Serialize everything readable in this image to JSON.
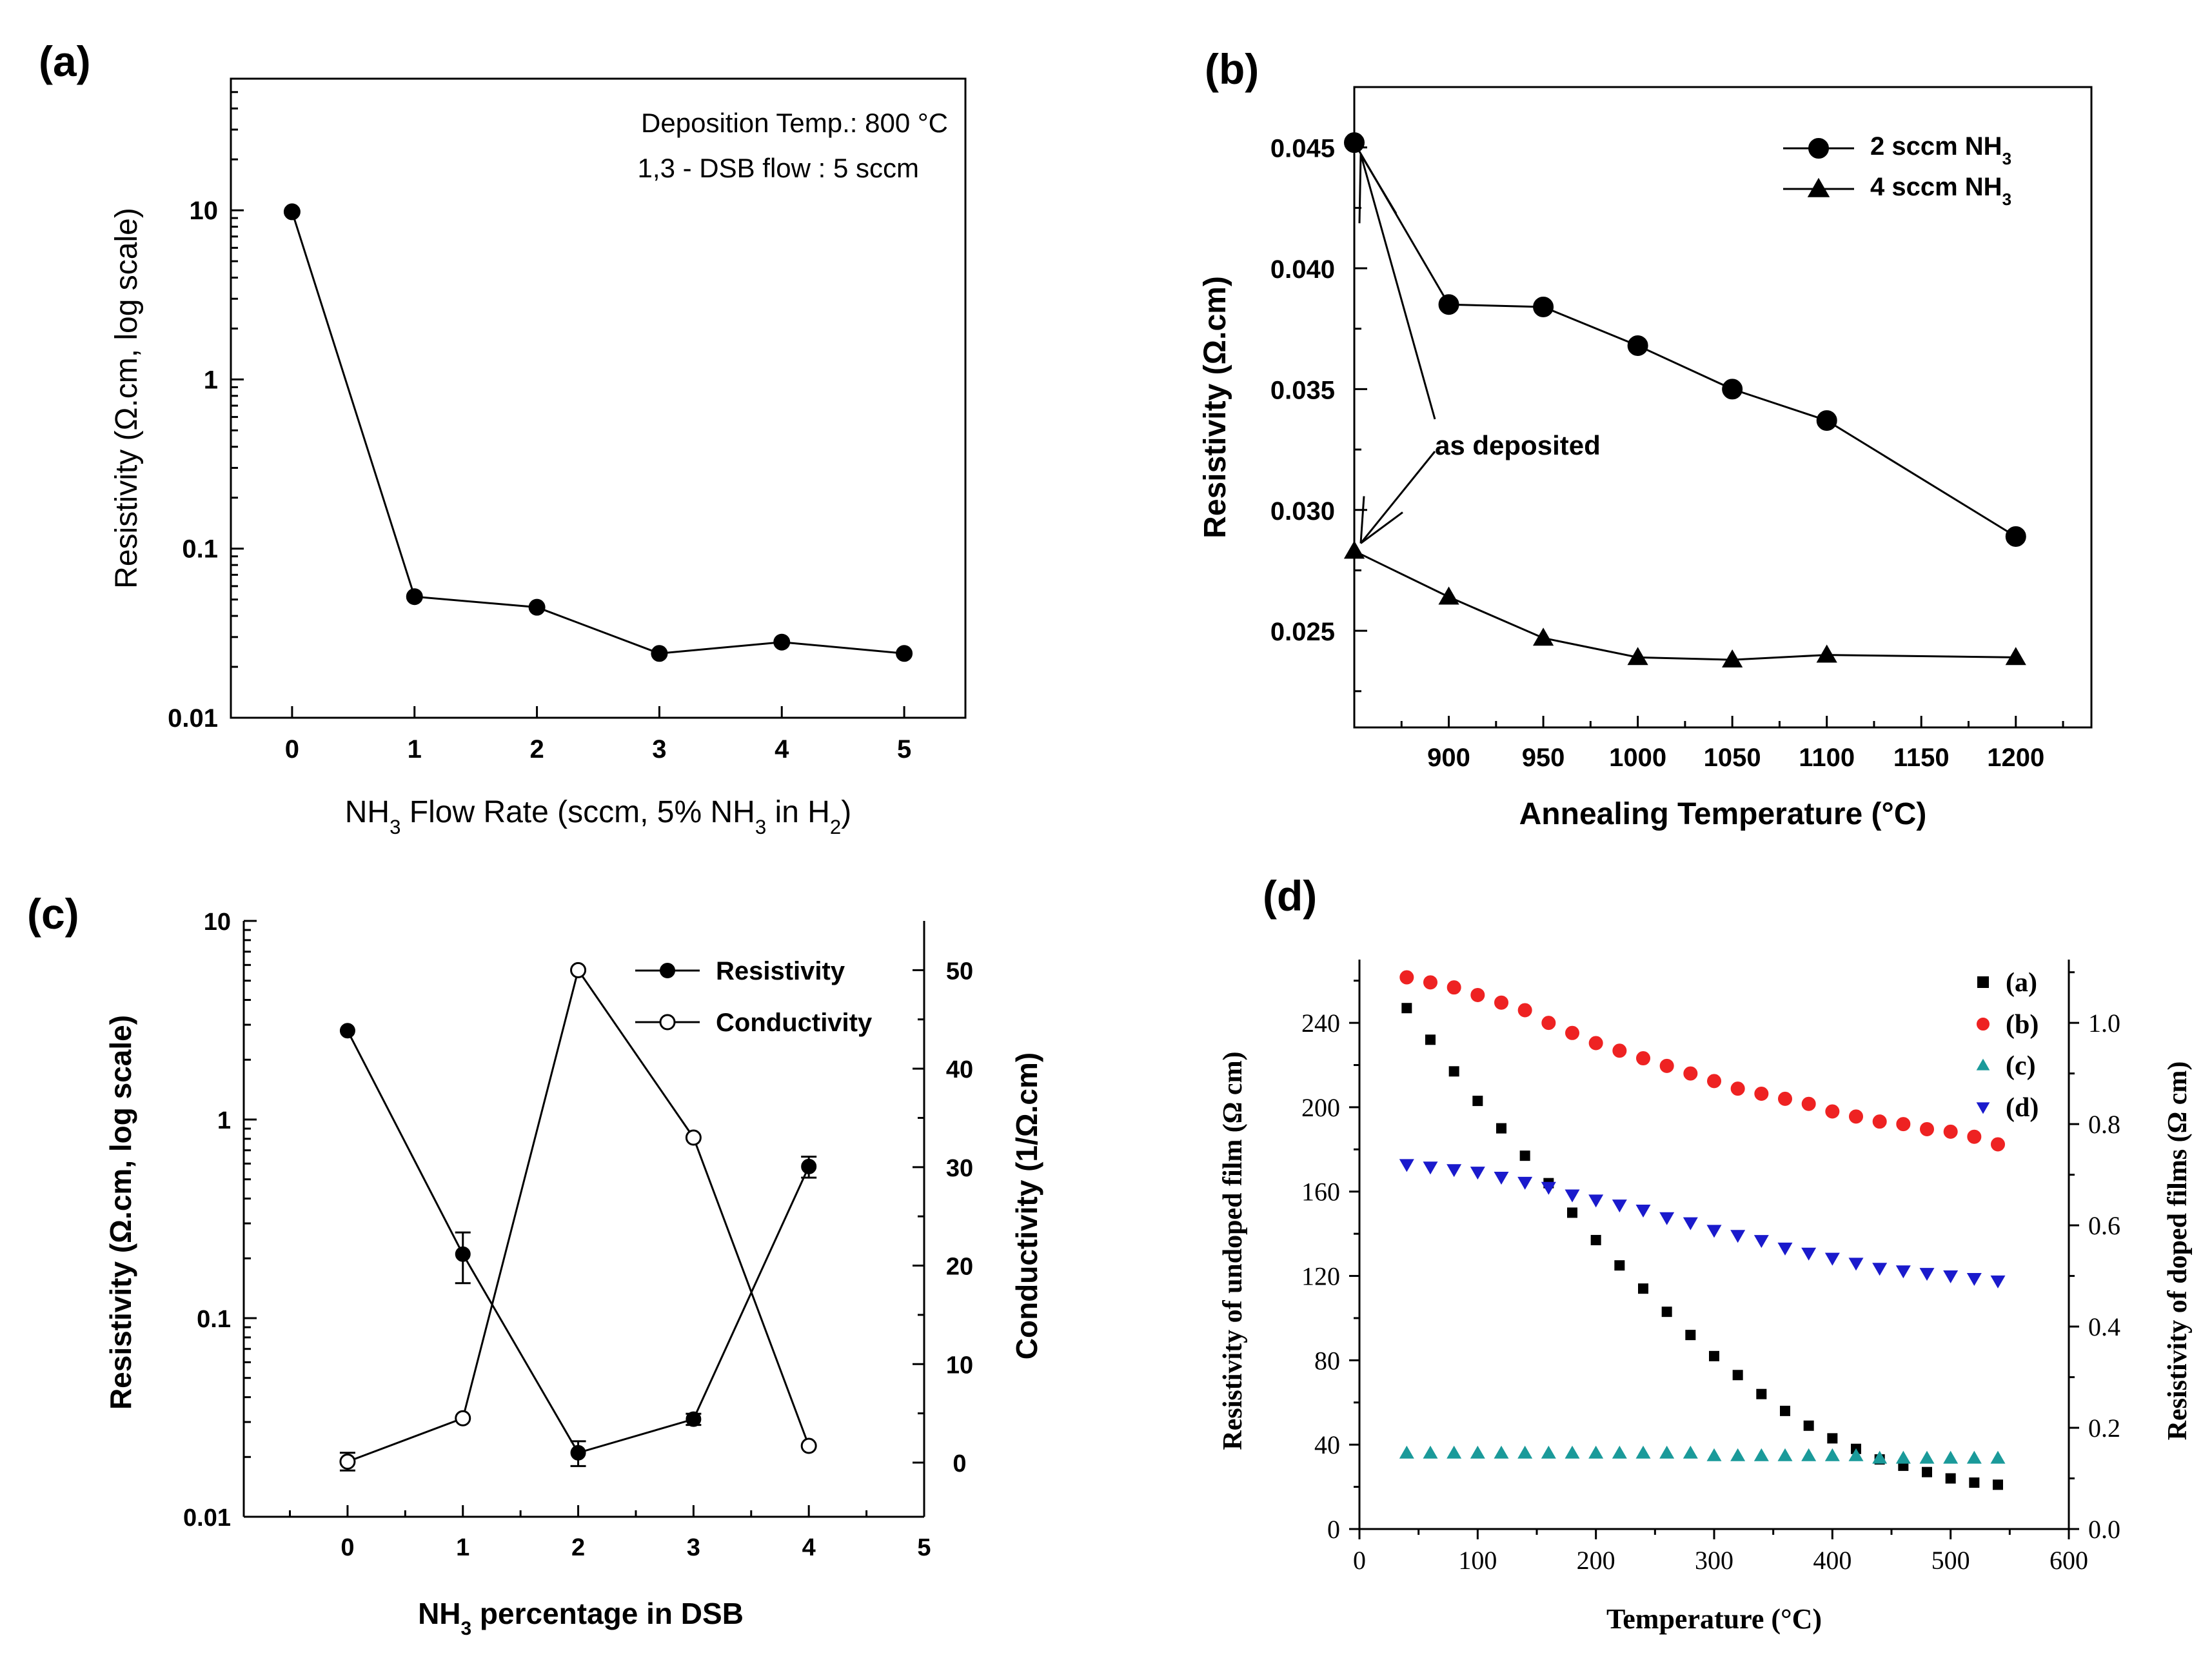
{
  "figure": {
    "panels": [
      "(a)",
      "(b)",
      "(c)",
      "(d)"
    ]
  },
  "chart_data": [
    {
      "id": "a",
      "type": "line",
      "panel_label": "(a)",
      "title": "",
      "xlabel": "NH₃ Flow Rate (sccm, 5% NH₃ in H₂)",
      "ylabel": "Resistivity (Ω.cm, log scale)",
      "yscale": "log",
      "xlim": [
        -0.5,
        5.5
      ],
      "ylim": [
        0.01,
        60
      ],
      "x_ticks": [
        0,
        1,
        2,
        3,
        4,
        5
      ],
      "y_ticks": [
        0.01,
        0.1,
        1,
        10
      ],
      "y_tick_labels": [
        "0.01",
        "0.1",
        "1",
        "10"
      ],
      "annotations": [
        "Deposition Temp.:  800 °C",
        "1,3 - DSB flow : 5 sccm"
      ],
      "series": [
        {
          "name": "Resistivity",
          "marker": "filled-circle",
          "color": "#000000",
          "x": [
            0,
            1,
            2,
            3,
            4,
            5
          ],
          "values": [
            9.8,
            0.052,
            0.045,
            0.024,
            0.028,
            0.024
          ]
        }
      ]
    },
    {
      "id": "b",
      "type": "line",
      "panel_label": "(b)",
      "title": "",
      "xlabel": "Annealing Temperature (°C)",
      "ylabel": "Resistivity (Ω.cm)",
      "xlim": [
        850,
        1240
      ],
      "ylim": [
        0.021,
        0.0475
      ],
      "x_ticks": [
        900,
        950,
        1000,
        1050,
        1100,
        1150,
        1200
      ],
      "y_ticks": [
        0.025,
        0.03,
        0.035,
        0.04,
        0.045
      ],
      "y_tick_labels": [
        "0.025",
        "0.030",
        "0.035",
        "0.040",
        "0.045"
      ],
      "annotations": [
        "as deposited"
      ],
      "legend_position": "top-right",
      "series": [
        {
          "name": "2 sccm NH₃",
          "marker": "filled-circle",
          "color": "#000000",
          "x": [
            850,
            900,
            950,
            1000,
            1050,
            1100,
            1200
          ],
          "values": [
            0.0452,
            0.0385,
            0.0384,
            0.0368,
            0.035,
            0.0337,
            0.0289
          ]
        },
        {
          "name": "4 sccm NH₃",
          "marker": "filled-triangle",
          "color": "#000000",
          "x": [
            850,
            900,
            950,
            1000,
            1050,
            1100,
            1200
          ],
          "values": [
            0.0283,
            0.0264,
            0.0247,
            0.0239,
            0.0238,
            0.024,
            0.0239
          ]
        }
      ]
    },
    {
      "id": "c",
      "type": "line",
      "panel_label": "(c)",
      "title": "",
      "xlabel": "NH₃ percentage in DSB",
      "ylabel": "Resistivity (Ω.cm, log scale)",
      "y2label": "Conductivity (1/Ω.cm)",
      "yscale": "log",
      "xlim": [
        -0.9,
        5.0
      ],
      "ylim": [
        0.01,
        10
      ],
      "y2lim": [
        -5.5,
        55
      ],
      "x_ticks": [
        0,
        1,
        2,
        3,
        4,
        5
      ],
      "y_ticks": [
        0.01,
        0.1,
        1,
        10
      ],
      "y_tick_labels": [
        "0.01",
        "0.1",
        "1",
        "10"
      ],
      "y2_ticks": [
        0,
        10,
        20,
        30,
        40,
        50
      ],
      "legend_position": "top-right",
      "series": [
        {
          "name": "Resistivity",
          "axis": "left",
          "marker": "filled-circle",
          "color": "#000000",
          "x": [
            0,
            1,
            2,
            3,
            4
          ],
          "values": [
            2.8,
            0.21,
            0.021,
            0.031,
            0.58
          ],
          "errors_low": [
            0,
            0.06,
            0.003,
            0.002,
            0.07
          ],
          "errors_high": [
            0,
            0.06,
            0.003,
            0.002,
            0.07
          ]
        },
        {
          "name": "Conductivity",
          "axis": "right",
          "marker": "open-circle",
          "color": "#000000",
          "x": [
            0,
            1,
            2,
            3,
            4
          ],
          "values": [
            0.1,
            4.5,
            50,
            33,
            1.7
          ],
          "errors": [
            0.9,
            0,
            0,
            0,
            0
          ]
        }
      ]
    },
    {
      "id": "d",
      "type": "scatter",
      "panel_label": "(d)",
      "title": "",
      "xlabel": "Temperature (°C)",
      "ylabel": "Resistivity of undoped film (Ω cm)",
      "y2label": "Resistivity of doped films (Ω cm)",
      "xlim": [
        0,
        600
      ],
      "ylim": [
        0,
        270
      ],
      "y2lim": [
        0,
        1.125
      ],
      "x_ticks": [
        0,
        100,
        200,
        300,
        400,
        500,
        600
      ],
      "y_ticks": [
        0,
        40,
        80,
        120,
        160,
        200,
        240
      ],
      "y2_ticks": [
        0.0,
        0.2,
        0.4,
        0.6,
        0.8,
        1.0
      ],
      "y2_tick_labels": [
        "0.0",
        "0.2",
        "0.4",
        "0.6",
        "0.8",
        "1.0"
      ],
      "legend_position": "top-right",
      "x": [
        40,
        60,
        80,
        100,
        120,
        140,
        160,
        180,
        200,
        220,
        240,
        260,
        280,
        300,
        320,
        340,
        360,
        380,
        400,
        420,
        440,
        460,
        480,
        500,
        520,
        540
      ],
      "series": [
        {
          "name": "(a)",
          "axis": "left",
          "marker": "square",
          "color": "#000000",
          "values": [
            247,
            232,
            217,
            203,
            190,
            177,
            164,
            150,
            137,
            125,
            114,
            103,
            92,
            82,
            73,
            64,
            56,
            49,
            43,
            38,
            33,
            30,
            27,
            24,
            22,
            21
          ]
        },
        {
          "name": "(b)",
          "axis": "right",
          "marker": "circle",
          "color": "#ee2222",
          "values": [
            1.09,
            1.08,
            1.07,
            1.055,
            1.04,
            1.025,
            1.0,
            0.98,
            0.96,
            0.945,
            0.93,
            0.915,
            0.9,
            0.885,
            0.87,
            0.86,
            0.85,
            0.84,
            0.825,
            0.815,
            0.805,
            0.8,
            0.79,
            0.785,
            0.775,
            0.76
          ]
        },
        {
          "name": "(c)",
          "axis": "right",
          "marker": "triangle-up",
          "color": "#1a9a9a",
          "values": [
            0.15,
            0.15,
            0.15,
            0.15,
            0.15,
            0.15,
            0.15,
            0.15,
            0.15,
            0.15,
            0.15,
            0.15,
            0.15,
            0.145,
            0.145,
            0.145,
            0.145,
            0.145,
            0.145,
            0.145,
            0.14,
            0.14,
            0.14,
            0.14,
            0.14,
            0.14
          ]
        },
        {
          "name": "(d)",
          "axis": "right",
          "marker": "triangle-down",
          "color": "#1a1acc",
          "values": [
            0.72,
            0.715,
            0.71,
            0.705,
            0.695,
            0.685,
            0.675,
            0.66,
            0.65,
            0.64,
            0.63,
            0.615,
            0.605,
            0.59,
            0.58,
            0.57,
            0.555,
            0.545,
            0.535,
            0.525,
            0.515,
            0.51,
            0.505,
            0.5,
            0.495,
            0.49
          ]
        }
      ]
    }
  ]
}
